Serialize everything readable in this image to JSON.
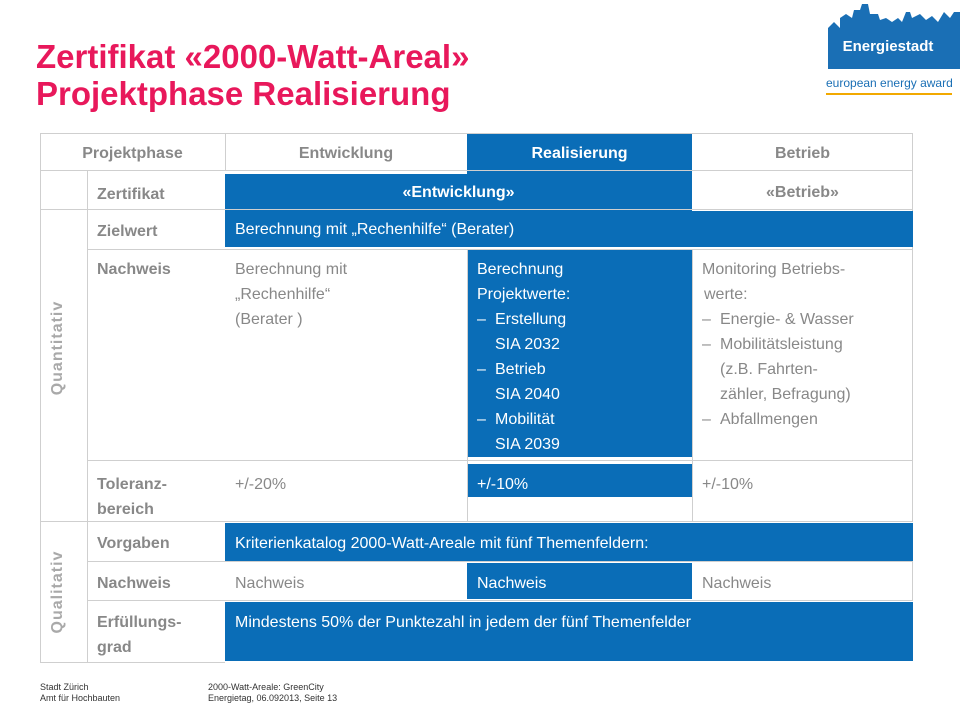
{
  "title": {
    "line1": "Zertifikat «2000-Watt-Areal»",
    "line2": "Projektphase Realisierung"
  },
  "logo": {
    "name": "Energiestadt",
    "subtitle": "european energy award"
  },
  "table": {
    "header": {
      "phase": "Projektphase",
      "entwicklung": "Entwicklung",
      "realisierung": "Realisierung",
      "betrieb": "Betrieb"
    },
    "zertifikat": {
      "label": "Zertifikat",
      "entwicklung": "«Entwicklung»",
      "betrieb": "«Betrieb»"
    },
    "quantitativ_label": "Quantitativ",
    "qualitativ_label": "Qualitativ",
    "zielwert": {
      "label": "Zielwert",
      "text": "Berechnung mit „Rechenhilfe“ (Berater)"
    },
    "nachweis1": {
      "label": "Nachweis",
      "entwicklung_l1": "Berechnung mit",
      "entwicklung_l2": "„Rechenhilfe“",
      "entwicklung_l3": "(Berater )",
      "realisierung_intro1": "Berechnung",
      "realisierung_intro2": "Projektwerte:",
      "realisierung_items": [
        {
          "a": "Erstellung",
          "b": "SIA 2032"
        },
        {
          "a": "Betrieb",
          "b": "SIA 2040"
        },
        {
          "a": "Mobilität",
          "b": "SIA 2039"
        }
      ],
      "betrieb_intro1": "Monitoring Betriebs-",
      "betrieb_intro2": "werte:",
      "betrieb_item1": "Energie- & Wasser",
      "betrieb_item2a": "Mobilitätsleistung",
      "betrieb_item2b": "(z.B. Fahrten-",
      "betrieb_item2c": "zähler, Befragung)",
      "betrieb_item3": "Abfallmengen"
    },
    "toleranz": {
      "label1": "Toleranz-",
      "label2": "bereich",
      "entwicklung": "+/-20%",
      "realisierung": "+/-10%",
      "betrieb": "+/-10%"
    },
    "vorgaben": {
      "label": "Vorgaben",
      "text": "Kriterienkatalog 2000-Watt-Areale mit fünf Themenfeldern:"
    },
    "nachweis2": {
      "label": "Nachweis",
      "entwicklung": "Nachweis",
      "realisierung": "Nachweis",
      "betrieb": "Nachweis"
    },
    "erfuellung": {
      "label1": "Erfüllungs-",
      "label2": "grad",
      "text": "Mindestens 50% der Punktezahl in jedem der fünf Themenfelder"
    }
  },
  "footer": {
    "left1": "Stadt Zürich",
    "left2": "Amt für Hochbauten",
    "right1": "2000-Watt-Areale: GreenCity",
    "right2": "Energietag, 06.092013, Seite 13"
  },
  "colors": {
    "title": "#e8185b",
    "accent_blue": "#0a6db7",
    "logo_blue": "#1a6fb5"
  }
}
